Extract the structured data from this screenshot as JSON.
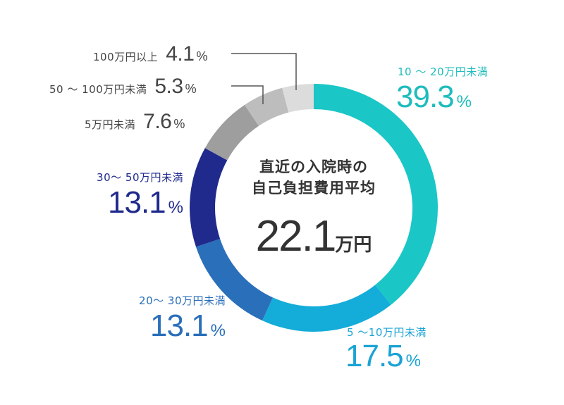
{
  "chart_data": {
    "type": "pie",
    "variant": "donut",
    "title": "直近の入院時の自己負担費用平均",
    "center_value": "22.1",
    "center_unit": "万円",
    "categories": [
      "10～20万円未満",
      "5～10万円未満",
      "20～30万円未満",
      "30～50万円未満",
      "5万円未満",
      "50～100万円未満",
      "100万円以上"
    ],
    "values": [
      39.3,
      17.5,
      13.1,
      13.1,
      7.6,
      5.3,
      4.1
    ],
    "unit": "%",
    "colors": [
      "#1ac6c6",
      "#14acd9",
      "#2a6fba",
      "#1f2a8c",
      "#9e9e9e",
      "#bdbdbd",
      "#dcdcdc"
    ],
    "start_angle_deg": 0,
    "direction": "clockwise",
    "legend": "none (direct labels)"
  },
  "center": {
    "title_line1": "直近の入院時の",
    "title_line2": "自己負担費用平均",
    "value": "22.1",
    "unit": "万円"
  },
  "labels": {
    "s1": {
      "name": "10 ～ 20万円未満",
      "value": "39.3",
      "pct": "%"
    },
    "s2": {
      "name": "5 ～10万円未満",
      "value": "17.5",
      "pct": "%"
    },
    "s3": {
      "name": "20～ 30万円未満",
      "value": "13.1",
      "pct": "%"
    },
    "s4": {
      "name": "30～ 50万円未満",
      "value": "13.1",
      "pct": "%"
    },
    "s5": {
      "name": "5万円未満",
      "value": "7.6",
      "pct": "%"
    },
    "s6": {
      "name": "50 ～ 100万円未満",
      "value": "5.3",
      "pct": "%"
    },
    "s7": {
      "name": "100万円以上",
      "value": "4.1",
      "pct": "%"
    }
  }
}
